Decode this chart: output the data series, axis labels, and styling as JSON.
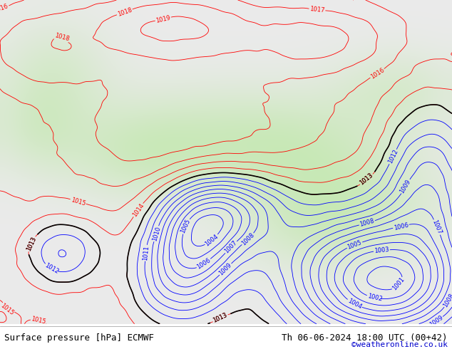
{
  "title_left": "Surface pressure [hPa] ECMWF",
  "title_right": "Th 06-06-2024 18:00 UTC (00+42)",
  "credit": "©weatheronline.co.uk",
  "bg_color": "#ffffff",
  "footer_bg": "#ffffff",
  "footer_text_color": "#000000",
  "credit_color": "#0000cc",
  "contour_red_color": "#ff0000",
  "contour_blue_color": "#0000ff",
  "contour_black_color": "#000000",
  "label_fontsize": 6,
  "footer_fontsize": 9,
  "figsize": [
    6.34,
    4.9
  ],
  "dpi": 100
}
